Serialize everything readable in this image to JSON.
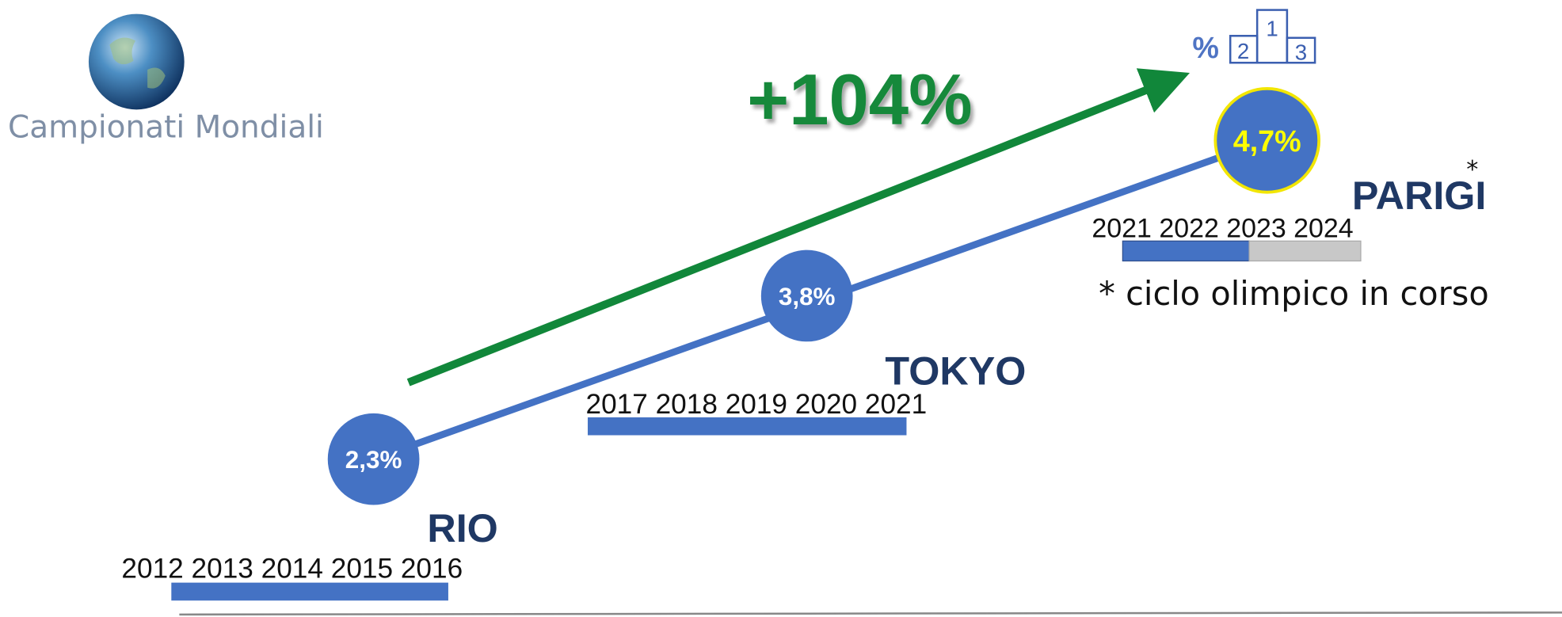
{
  "logo": {
    "title": "Campionati Mondiali"
  },
  "headline": "+104%",
  "icon": {
    "symbol": "%",
    "podium": [
      "2",
      "1",
      "3"
    ]
  },
  "stages": [
    {
      "name": "RIO",
      "value": "2,3%",
      "years": "2012 2013 2014 2015 2016"
    },
    {
      "name": "TOKYO",
      "value": "3,8%",
      "years": "2017 2018 2019 2020 2021"
    },
    {
      "name": "PARIGI",
      "value": "4,7%",
      "years": "2021 2022 2023 2024",
      "marker": "*"
    }
  ],
  "note": "* ciclo olimpico in corso"
}
